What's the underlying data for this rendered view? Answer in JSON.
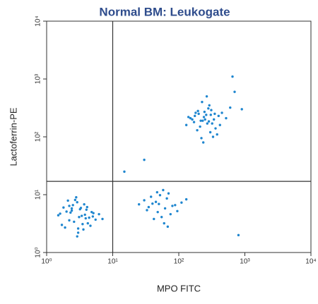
{
  "chart_data": {
    "type": "scatter",
    "title": "Normal BM: Leukogate",
    "x_label": "MPO FITC",
    "y_label": "Lactoferrin-PE",
    "x_log": true,
    "y_log": true,
    "xlim": [
      1,
      10000
    ],
    "ylim": [
      1,
      10000
    ],
    "xticks": [
      {
        "value": 1,
        "label": "10⁰"
      },
      {
        "value": 10,
        "label": "10¹"
      },
      {
        "value": 100,
        "label": "10²"
      },
      {
        "value": 1000,
        "label": "10³"
      },
      {
        "value": 10000,
        "label": "10⁴"
      }
    ],
    "yticks": [
      {
        "value": 1,
        "label": "10⁰"
      },
      {
        "value": 10,
        "label": "10¹"
      },
      {
        "value": 100,
        "label": "10²"
      },
      {
        "value": 1000,
        "label": "10³"
      },
      {
        "value": 10000,
        "label": "10⁴"
      }
    ],
    "gates": {
      "x": 10,
      "y": 17
    },
    "color": "#1f86cf",
    "title_color": "#2e4c8c",
    "x": [
      3.1,
      2.4,
      4.2,
      1.8,
      3.6,
      2.9,
      5.1,
      2.2,
      3.3,
      4.6,
      1.5,
      2.7,
      3.9,
      2.0,
      6.2,
      3.0,
      2.5,
      4.0,
      1.7,
      3.4,
      2.8,
      5.5,
      2.3,
      3.7,
      4.4,
      1.9,
      3.2,
      2.6,
      4.8,
      2.1,
      3.5,
      1.6,
      4.1,
      2.9,
      3.8,
      7.0,
      2.4,
      3.0,
      5.0,
      2.2,
      45,
      62,
      38,
      80,
      55,
      30,
      70,
      50,
      95,
      42,
      66,
      35,
      58,
      110,
      48,
      75,
      40,
      52,
      88,
      33,
      60,
      47,
      130,
      25,
      68,
      250,
      180,
      320,
      210,
      400,
      150,
      280,
      230,
      360,
      195,
      300,
      170,
      450,
      260,
      220,
      340,
      130,
      290,
      240,
      380,
      200,
      310,
      160,
      270,
      520,
      225,
      350,
      190,
      285,
      600,
      245,
      175,
      330,
      215,
      420,
      265,
      140,
      305,
      235,
      700,
      30,
      900,
      800,
      15,
      650
    ],
    "y": [
      4.1,
      5.3,
      3.2,
      6.0,
      2.5,
      7.4,
      4.8,
      3.6,
      5.9,
      2.9,
      4.4,
      8.1,
      3.9,
      5.1,
      4.6,
      2.2,
      6.6,
      5.5,
      3.0,
      4.3,
      9.0,
      3.7,
      4.9,
      6.8,
      4.0,
      2.7,
      5.6,
      3.4,
      5.0,
      7.9,
      3.1,
      4.7,
      6.1,
      1.9,
      4.5,
      3.8,
      5.8,
      2.6,
      4.2,
      6.4,
      7.5,
      5.8,
      9.2,
      6.4,
      4.1,
      8.0,
      10.5,
      6.9,
      5.2,
      3.8,
      8.6,
      6.1,
      12.0,
      7.3,
      5.0,
      4.6,
      7.0,
      9.8,
      6.6,
      5.4,
      3.2,
      11.0,
      8.3,
      6.8,
      2.8,
      200,
      260,
      170,
      150,
      230,
      210,
      310,
      190,
      140,
      280,
      120,
      180,
      260,
      240,
      95,
      200,
      160,
      350,
      220,
      110,
      250,
      290,
      200,
      170,
      210,
      400,
      250,
      130,
      185,
      320,
      270,
      230,
      100,
      190,
      160,
      500,
      220,
      240,
      80,
      600,
      40,
      300,
      2,
      25,
      1100
    ]
  }
}
